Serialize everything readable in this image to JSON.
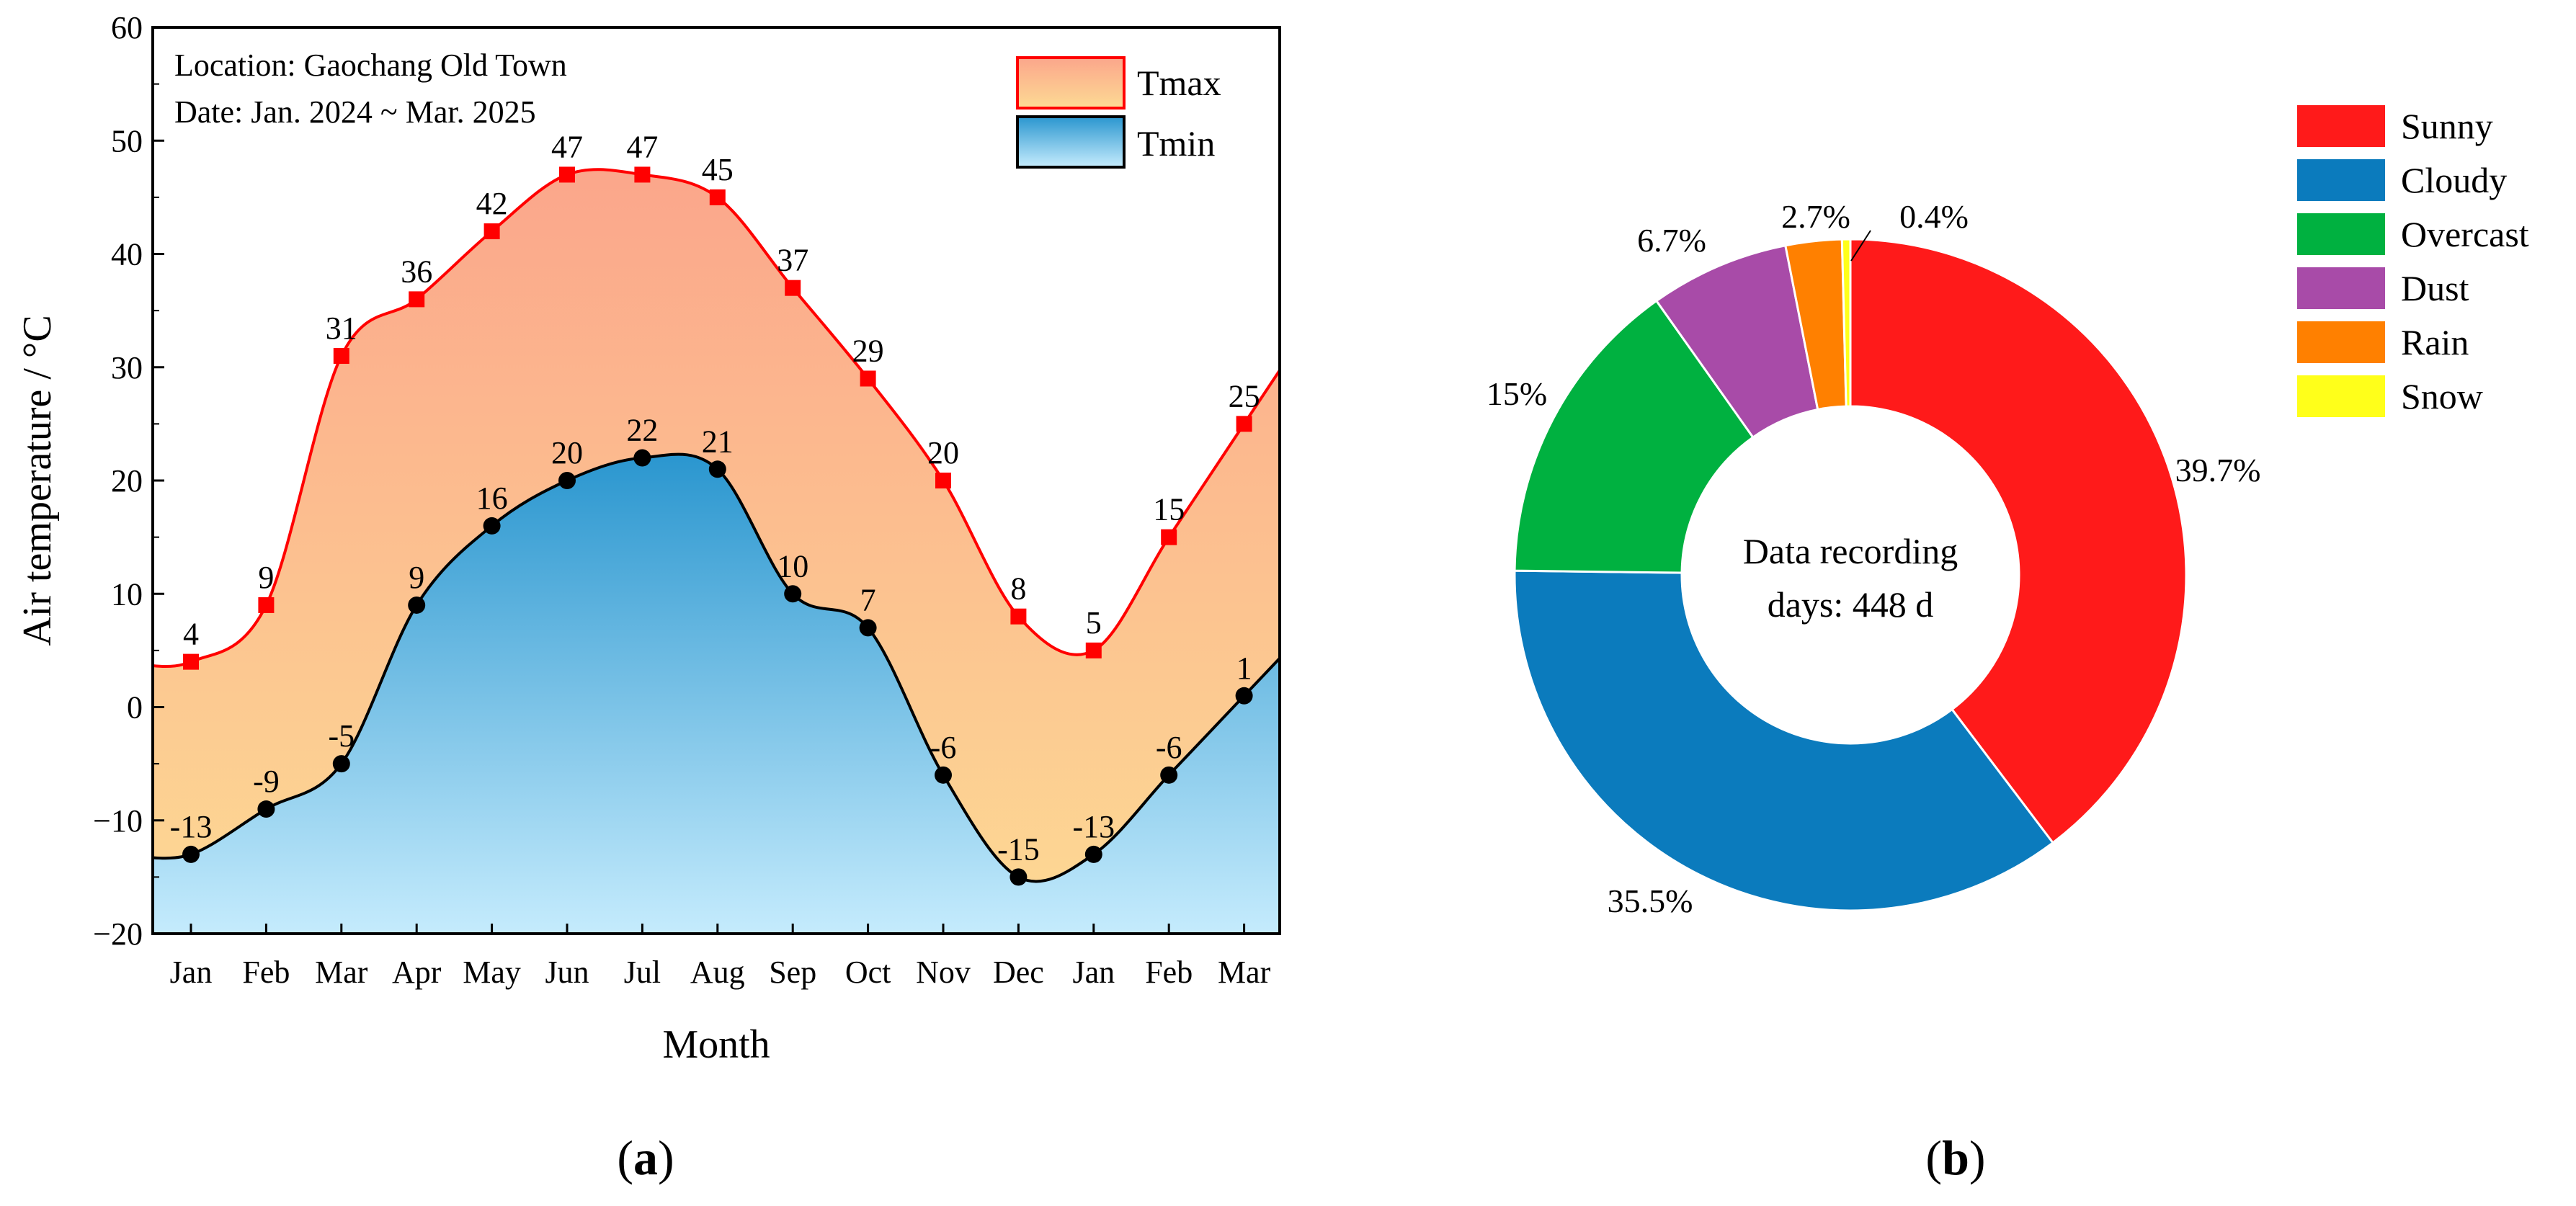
{
  "chart_data": [
    {
      "type": "area",
      "panel_label": "a",
      "annotation": [
        "Location: Gaochang Old Town",
        "Date: Jan. 2024 ~ Mar. 2025"
      ],
      "xlabel": "Month",
      "ylabel": "Air temperature / °C",
      "ylim": [
        -20,
        60
      ],
      "yticks": [
        -20,
        -10,
        0,
        10,
        20,
        30,
        40,
        50,
        60
      ],
      "categories": [
        "Jan",
        "Feb",
        "Mar",
        "Apr",
        "May",
        "Jun",
        "Jul",
        "Aug",
        "Sep",
        "Oct",
        "Nov",
        "Dec",
        "Jan",
        "Feb",
        "Mar"
      ],
      "series": [
        {
          "name": "Tmax",
          "values": [
            4,
            9,
            31,
            36,
            42,
            47,
            47,
            45,
            37,
            29,
            20,
            8,
            5,
            15,
            25
          ],
          "color": "#ff0000",
          "fill_top": "#fba68b",
          "fill_bottom": "#fdda94",
          "marker": "square"
        },
        {
          "name": "Tmin",
          "values": [
            -13,
            -9,
            -5,
            9,
            16,
            20,
            22,
            21,
            10,
            7,
            -6,
            -15,
            -13,
            -6,
            1
          ],
          "color": "#000000",
          "fill_top": "#2a96cf",
          "fill_bottom": "#c6ecfd",
          "marker": "circle"
        }
      ],
      "legend_position": "top-right"
    },
    {
      "type": "pie",
      "panel_label": "b",
      "center_text": [
        "Data recording",
        "days: 448 d"
      ],
      "slices": [
        {
          "name": "Sunny",
          "value": 39.7,
          "label": "39.7%",
          "color": "#ff1a1a"
        },
        {
          "name": "Cloudy",
          "value": 35.5,
          "label": "35.5%",
          "color": "#0b7bbd"
        },
        {
          "name": "Overcast",
          "value": 15,
          "label": "15%",
          "color": "#00b140"
        },
        {
          "name": "Dust",
          "value": 6.7,
          "label": "6.7%",
          "color": "#a84ba8"
        },
        {
          "name": "Rain",
          "value": 2.7,
          "label": "2.7%",
          "color": "#ff8000"
        },
        {
          "name": "Snow",
          "value": 0.4,
          "label": "0.4%",
          "color": "#ffff1a"
        }
      ],
      "legend_position": "right"
    }
  ]
}
